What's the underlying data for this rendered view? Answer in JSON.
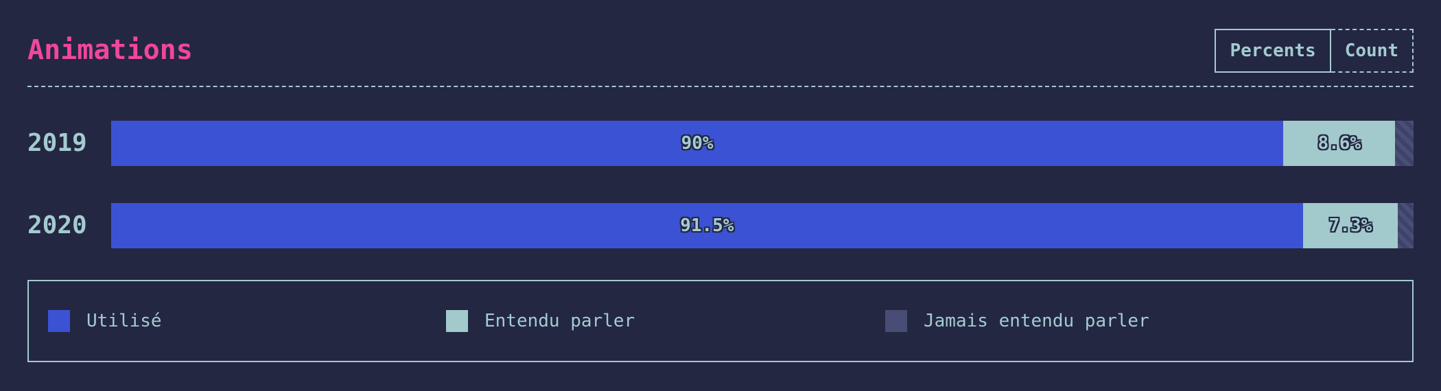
{
  "header": {
    "title": "Animations",
    "toggle": {
      "percents_label": "Percents",
      "count_label": "Count",
      "active": "Percents"
    }
  },
  "colors": {
    "background": "#232742",
    "title": "#f0479a",
    "text": "#a4cbd0",
    "used": "#3c52d4",
    "heard": "#a2c9cb",
    "never": "#484d75"
  },
  "chart_data": {
    "type": "bar",
    "orientation": "horizontal",
    "stacked": true,
    "normalized": true,
    "title": "Animations",
    "categories": [
      "2019",
      "2020"
    ],
    "series": [
      {
        "name": "Utilisé",
        "values": [
          90,
          91.5
        ],
        "labels": [
          "90%",
          "91.5%"
        ]
      },
      {
        "name": "Entendu parler",
        "values": [
          8.6,
          7.3
        ],
        "labels": [
          "8.6%",
          "7.3%"
        ]
      },
      {
        "name": "Jamais entendu parler",
        "values": [
          1.4,
          1.2
        ],
        "labels": [
          "",
          ""
        ]
      }
    ],
    "xlim": [
      0,
      100
    ],
    "grid": false,
    "legend_position": "bottom"
  },
  "legend": {
    "items": [
      {
        "label": "Utilisé",
        "color": "#3c52d4"
      },
      {
        "label": "Entendu parler",
        "color": "#a2c9cb"
      },
      {
        "label": "Jamais entendu parler",
        "color": "#484d75"
      }
    ]
  }
}
